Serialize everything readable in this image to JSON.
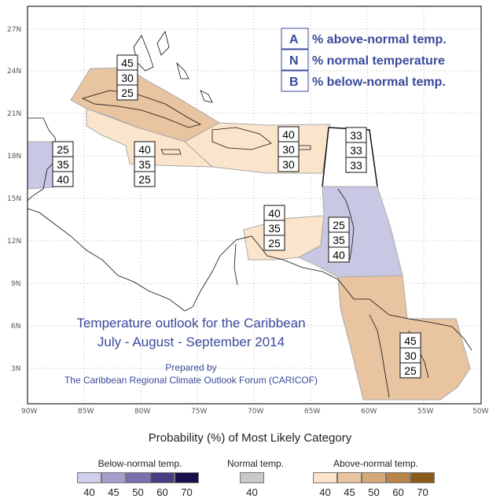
{
  "legend_boxes": [
    {
      "key": "A",
      "text": "% above-normal temp."
    },
    {
      "key": "N",
      "text": "% normal temperature"
    },
    {
      "key": "B",
      "text": "% below-normal temp."
    }
  ],
  "map_title": {
    "line1": "Temperature outlook for the Caribbean",
    "line2": "July - August - September 2014"
  },
  "prepared": {
    "line1": "Prepared by",
    "line2": "The Caribbean Regional Climate Outlook Forum (CARICOF)"
  },
  "lat_ticks": [
    "27N",
    "24N",
    "21N",
    "18N",
    "15N",
    "12N",
    "9N",
    "6N",
    "3N"
  ],
  "lon_ticks": [
    "90W",
    "85W",
    "80W",
    "75W",
    "70W",
    "65W",
    "60W",
    "55W",
    "50W"
  ],
  "zones": [
    {
      "name": "bahamas-cuba",
      "above": 45,
      "normal": 30,
      "below": 25,
      "category": "above",
      "color": "#e8c4a0"
    },
    {
      "name": "jamaica-cayman",
      "above": 40,
      "normal": 35,
      "below": 25,
      "category": "above",
      "color": "#fbe4cc"
    },
    {
      "name": "hispaniola-puerto-rico",
      "above": 40,
      "normal": 30,
      "below": 30,
      "category": "above",
      "color": "#fbe4cc"
    },
    {
      "name": "belize",
      "above": 25,
      "normal": 35,
      "below": 40,
      "category": "below",
      "color": "#c9c8e4"
    },
    {
      "name": "leeward-islands",
      "above": 33,
      "normal": 33,
      "below": 33,
      "category": "none",
      "color": "#ffffff"
    },
    {
      "name": "abc-islands",
      "above": 40,
      "normal": 35,
      "below": 25,
      "category": "above",
      "color": "#fbe4cc"
    },
    {
      "name": "windward-islands",
      "above": 25,
      "normal": 35,
      "below": 40,
      "category": "below",
      "color": "#c9c8e4"
    },
    {
      "name": "guianas",
      "above": 45,
      "normal": 30,
      "below": 25,
      "category": "above",
      "color": "#e8c4a0"
    }
  ],
  "colorbar": {
    "title": "Probability (%) of Most Likely Category",
    "below": {
      "label": "Below-normal temp.",
      "values": [
        "40",
        "45",
        "50",
        "60",
        "70"
      ],
      "colors": [
        "#cfcfea",
        "#a59fcd",
        "#7a70ad",
        "#4a3c80",
        "#1a0f4a"
      ]
    },
    "normal": {
      "label": "Normal temp.",
      "values": [
        "40"
      ],
      "colors": [
        "#c8c8c8"
      ]
    },
    "above": {
      "label": "Above-normal temp.",
      "values": [
        "40",
        "45",
        "50",
        "60",
        "70"
      ],
      "colors": [
        "#fbe4cc",
        "#e8c4a0",
        "#d6a878",
        "#b88448",
        "#8a5a1a"
      ]
    }
  }
}
